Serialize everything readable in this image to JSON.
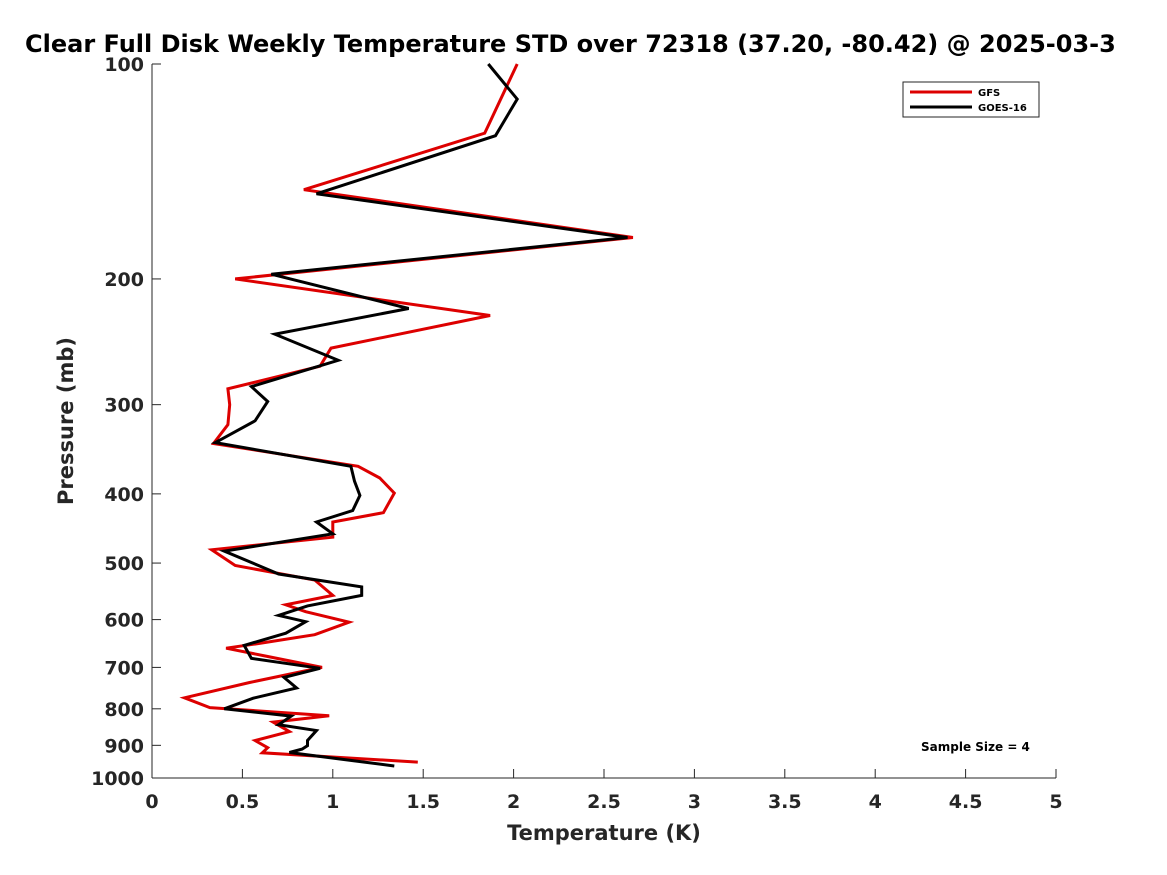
{
  "chart_data": {
    "type": "line",
    "title": "Clear Full Disk Weekly Temperature STD over 72318 (37.20, -80.42) @ 2025-03-3",
    "xlabel": "Temperature (K)",
    "ylabel": "Pressure (mb)",
    "xlim": [
      0,
      5
    ],
    "ylim": [
      100,
      1000
    ],
    "yscale": "log",
    "y_reversed": true,
    "grid": false,
    "legend_position": "top-right",
    "x_ticks": [
      "0",
      "0.5",
      "1",
      "1.5",
      "2",
      "2.5",
      "3",
      "3.5",
      "4",
      "4.5",
      "5"
    ],
    "x_tick_values": [
      0,
      0.5,
      1,
      1.5,
      2,
      2.5,
      3,
      3.5,
      4,
      4.5,
      5
    ],
    "y_ticks": [
      "100",
      "200",
      "300",
      "400",
      "500",
      "600",
      "700",
      "800",
      "900",
      "1000"
    ],
    "y_tick_values": [
      100,
      200,
      300,
      400,
      500,
      600,
      700,
      800,
      900,
      1000
    ],
    "annotation": "Sample Size = 4",
    "series": [
      {
        "name": "GFS",
        "color": "#dd0000",
        "points": [
          [
            2.02,
            100
          ],
          [
            1.84,
            125
          ],
          [
            0.84,
            150
          ],
          [
            2.66,
            175
          ],
          [
            0.46,
            200
          ],
          [
            1.87,
            225
          ],
          [
            0.99,
            250
          ],
          [
            0.93,
            265
          ],
          [
            0.42,
            285
          ],
          [
            0.43,
            300
          ],
          [
            0.42,
            320
          ],
          [
            0.34,
            340
          ],
          [
            1.14,
            366
          ],
          [
            1.26,
            380
          ],
          [
            1.34,
            399
          ],
          [
            1.28,
            425
          ],
          [
            1.0,
            438
          ],
          [
            1.0,
            460
          ],
          [
            0.33,
            479
          ],
          [
            0.46,
            504
          ],
          [
            0.9,
            528
          ],
          [
            1.0,
            555
          ],
          [
            0.74,
            572
          ],
          [
            0.85,
            585
          ],
          [
            1.09,
            605
          ],
          [
            0.9,
            630
          ],
          [
            0.59,
            648
          ],
          [
            0.41,
            658
          ],
          [
            0.63,
            675
          ],
          [
            0.94,
            700
          ],
          [
            0.54,
            735
          ],
          [
            0.18,
            772
          ],
          [
            0.32,
            797
          ],
          [
            0.98,
            818
          ],
          [
            0.67,
            835
          ],
          [
            0.76,
            861
          ],
          [
            0.57,
            886
          ],
          [
            0.64,
            907
          ],
          [
            0.61,
            922
          ],
          [
            1.47,
            950
          ]
        ]
      },
      {
        "name": "GOES-16",
        "color": "#000000",
        "points": [
          [
            1.86,
            100
          ],
          [
            2.02,
            112
          ],
          [
            1.9,
            126
          ],
          [
            0.91,
            152
          ],
          [
            2.63,
            175
          ],
          [
            0.66,
            197
          ],
          [
            1.42,
            220
          ],
          [
            0.68,
            239
          ],
          [
            1.03,
            260
          ],
          [
            0.55,
            283
          ],
          [
            0.64,
            297
          ],
          [
            0.57,
            316
          ],
          [
            0.35,
            339
          ],
          [
            1.1,
            366
          ],
          [
            1.12,
            384
          ],
          [
            1.15,
            402
          ],
          [
            1.11,
            422
          ],
          [
            0.91,
            438
          ],
          [
            1.0,
            455
          ],
          [
            0.4,
            481
          ],
          [
            0.7,
            518
          ],
          [
            1.16,
            540
          ],
          [
            1.16,
            555
          ],
          [
            0.86,
            574
          ],
          [
            0.7,
            592
          ],
          [
            0.85,
            604
          ],
          [
            0.74,
            627
          ],
          [
            0.51,
            652
          ],
          [
            0.55,
            680
          ],
          [
            0.93,
            702
          ],
          [
            0.73,
            723
          ],
          [
            0.8,
            748
          ],
          [
            0.56,
            773
          ],
          [
            0.4,
            800
          ],
          [
            0.77,
            819
          ],
          [
            0.7,
            842
          ],
          [
            0.91,
            858
          ],
          [
            0.86,
            886
          ],
          [
            0.86,
            901
          ],
          [
            0.83,
            911
          ],
          [
            0.76,
            921
          ],
          [
            1.34,
            962
          ]
        ]
      }
    ]
  }
}
